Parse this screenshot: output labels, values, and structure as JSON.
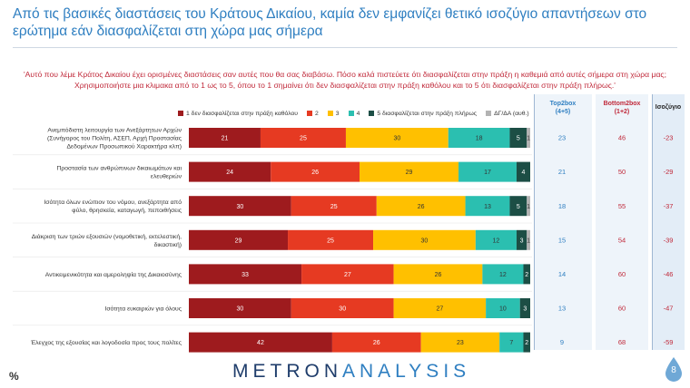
{
  "title_line1": "Από τις βασικές διαστάσεις του Κράτους Δικαίου, καμία δεν εμφανίζει θετικό ισοζύγιο απαντήσεων στο",
  "title_line2": "ερώτημα εάν διασφαλίζεται στη χώρα μας σήμερα",
  "question_line1": "'Αυτό που λέμε Κράτος Δικαίου έχει ορισμένες διαστάσεις σαν αυτές που θα σας διαβάσω. Πόσο καλά πιστεύετε ότι διασφαλίζεται στην πράξη η καθεμιά από αυτές σήμερα στη χώρα μας;",
  "question_line2": "Χρησιμοποιήστε μια κλιμακα από το 1 ως το 5, όπου το 1 σημαίνει ότι δεν διασφαλίζεται στην πράξη καθόλου και το 5 ότι διασφαλίζεται στην πράξη πλήρως.'",
  "columns": {
    "top2_line1": "Top2box",
    "top2_line2": "(4+5)",
    "bottom2_line1": "Bottom2box",
    "bottom2_line2": "(1+2)",
    "balance": "Ισοζύγιο"
  },
  "colors": {
    "s1": "#9e1b1e",
    "s2": "#e63a22",
    "s3": "#ffc000",
    "s4": "#2bbfb0",
    "s5": "#1c4e45",
    "dk": "#b3b3b3",
    "title": "#2f7fc1",
    "question": "#c0293a",
    "top2": "#2f7fc1",
    "bottom2": "#c0293a",
    "balance": "#c0293a"
  },
  "logo_part1": "METRON",
  "logo_part2": "ANALYSIS",
  "percent_sign": "%",
  "page_number": "8",
  "chart_data": {
    "type": "bar",
    "orientation": "horizontal",
    "stacked": true,
    "percent_scale": [
      0,
      100
    ],
    "categories": [
      [
        "Ανεμπόδιστη λειτουργία των Ανεξάρτητων Αρχών",
        "(Συνήγορος του Πολίτη, ΑΣΕΠ, Αρχή Προστασίας",
        "Δεδομένων Προσωπικού Χαρακτήρα κλπ)"
      ],
      [
        "Προστασία των ανθρώπινων δικαιωμάτων και",
        "ελευθεριών"
      ],
      [
        "Ισότητα όλων ενώπιον του νόμου, ανεξάρτητα από",
        "φύλο, θρησκεία, καταγωγή, πεποιθήσεις"
      ],
      [
        "Διάκριση των τριών εξουσιών (νομοθετική, εκτελεστική,",
        "δικαστική)"
      ],
      [
        "Αντικειμενικότητα και αμεροληψία της Δικαιοσύνης"
      ],
      [
        "Ισότητα ευκαιριών για όλους"
      ],
      [
        "Έλεγχος της εξουσίας και λογοδοσία προς τους πολίτες"
      ]
    ],
    "series": [
      {
        "name": "1 δεν διασφαλίζεται στην πράξη καθόλου",
        "values": [
          21,
          24,
          30,
          29,
          33,
          30,
          42
        ]
      },
      {
        "name": "2",
        "values": [
          25,
          26,
          25,
          25,
          27,
          30,
          26
        ]
      },
      {
        "name": "3",
        "values": [
          30,
          29,
          26,
          30,
          26,
          27,
          23
        ]
      },
      {
        "name": "4",
        "values": [
          18,
          17,
          13,
          12,
          12,
          10,
          7
        ]
      },
      {
        "name": "5 διασφαλίζεται στην πράξη πλήρως",
        "values": [
          5,
          4,
          5,
          3,
          2,
          3,
          2
        ]
      },
      {
        "name": "ΔΓ/ΔΑ (αυθ.)",
        "values": [
          1,
          0,
          1,
          1,
          0,
          0,
          0
        ]
      }
    ],
    "top2box": [
      23,
      21,
      18,
      15,
      14,
      13,
      9
    ],
    "bottom2box": [
      46,
      50,
      55,
      54,
      60,
      60,
      68
    ],
    "balance": [
      -23,
      -29,
      -37,
      -39,
      -46,
      -47,
      -59
    ]
  }
}
